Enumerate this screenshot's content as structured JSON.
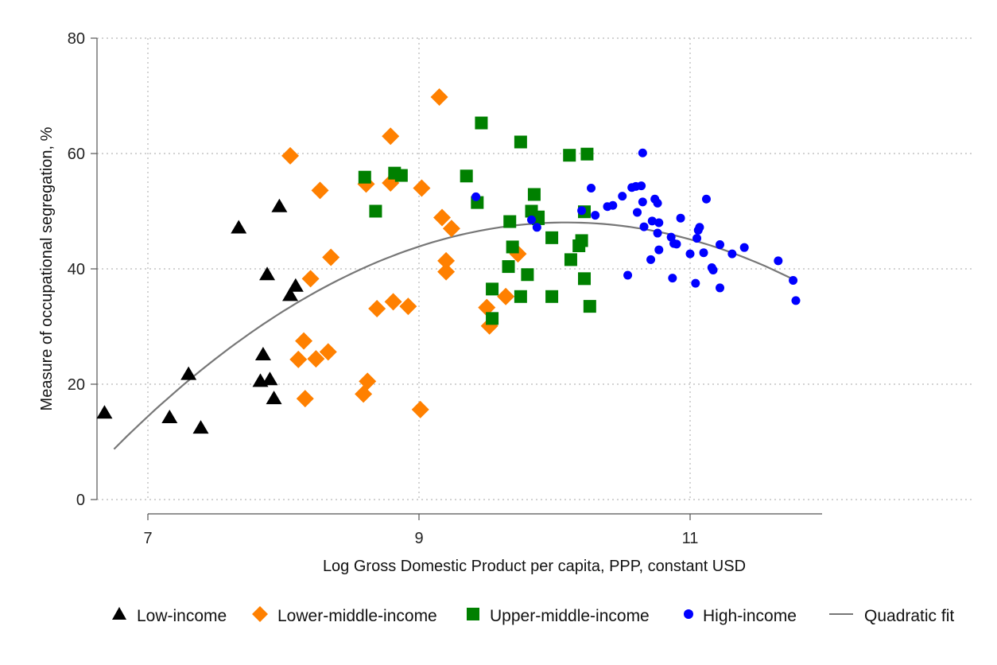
{
  "chart_data": {
    "type": "scatter",
    "title": "",
    "xlabel": "Log Gross Domestic Product per capita, PPP, constant USD",
    "ylabel": "Measure of occupational segregation, %",
    "xlim": [
      6.6,
      12.5
    ],
    "ylim": [
      0,
      80
    ],
    "xticks": [
      7,
      9,
      11
    ],
    "yticks": [
      0,
      20,
      40,
      60,
      80
    ],
    "grid": "horizontal-dotted",
    "legend_position": "bottom",
    "series": [
      {
        "name": "Low-income",
        "marker": "triangle",
        "color": "#000000",
        "points": [
          [
            6.68,
            15.0
          ],
          [
            7.16,
            14.2
          ],
          [
            7.3,
            21.7
          ],
          [
            7.39,
            12.4
          ],
          [
            7.67,
            47.1
          ],
          [
            7.83,
            20.5
          ],
          [
            7.85,
            25.1
          ],
          [
            7.88,
            39.0
          ],
          [
            7.9,
            20.8
          ],
          [
            7.93,
            17.5
          ],
          [
            7.97,
            50.8
          ],
          [
            8.05,
            35.4
          ],
          [
            8.09,
            37.0
          ]
        ]
      },
      {
        "name": "Lower-middle-income",
        "marker": "diamond",
        "color": "#FF8000",
        "points": [
          [
            8.05,
            59.6
          ],
          [
            8.11,
            24.3
          ],
          [
            8.15,
            27.5
          ],
          [
            8.16,
            17.5
          ],
          [
            8.2,
            38.3
          ],
          [
            8.24,
            24.4
          ],
          [
            8.27,
            53.6
          ],
          [
            8.33,
            25.6
          ],
          [
            8.35,
            42.0
          ],
          [
            8.59,
            18.3
          ],
          [
            8.61,
            54.7
          ],
          [
            8.62,
            20.5
          ],
          [
            8.69,
            33.1
          ],
          [
            8.79,
            63.0
          ],
          [
            8.79,
            54.9
          ],
          [
            8.81,
            34.3
          ],
          [
            8.92,
            33.5
          ],
          [
            9.01,
            15.6
          ],
          [
            9.02,
            54.0
          ],
          [
            9.15,
            69.8
          ],
          [
            9.17,
            48.9
          ],
          [
            9.2,
            41.4
          ],
          [
            9.2,
            39.5
          ],
          [
            9.24,
            47.0
          ],
          [
            9.5,
            33.3
          ],
          [
            9.52,
            30.1
          ],
          [
            9.64,
            35.2
          ],
          [
            9.73,
            42.6
          ]
        ]
      },
      {
        "name": "Upper-middle-income",
        "marker": "square",
        "color": "#008000",
        "points": [
          [
            8.6,
            55.9
          ],
          [
            8.68,
            50.0
          ],
          [
            8.82,
            56.6
          ],
          [
            8.87,
            56.2
          ],
          [
            9.35,
            56.1
          ],
          [
            9.43,
            51.5
          ],
          [
            9.46,
            65.3
          ],
          [
            9.54,
            31.4
          ],
          [
            9.54,
            36.5
          ],
          [
            9.66,
            40.4
          ],
          [
            9.67,
            48.2
          ],
          [
            9.69,
            43.8
          ],
          [
            9.75,
            35.2
          ],
          [
            9.75,
            62.0
          ],
          [
            9.8,
            39.0
          ],
          [
            9.83,
            50.0
          ],
          [
            9.85,
            52.9
          ],
          [
            9.88,
            48.7
          ],
          [
            9.88,
            49.0
          ],
          [
            9.98,
            45.4
          ],
          [
            9.98,
            35.2
          ],
          [
            10.11,
            59.7
          ],
          [
            10.12,
            41.6
          ],
          [
            10.18,
            44.0
          ],
          [
            10.2,
            44.9
          ],
          [
            10.22,
            38.3
          ],
          [
            10.22,
            49.9
          ],
          [
            10.24,
            59.9
          ],
          [
            10.26,
            33.5
          ]
        ]
      },
      {
        "name": "High-income",
        "marker": "circle",
        "color": "#0000FF",
        "points": [
          [
            9.42,
            52.5
          ],
          [
            9.83,
            48.5
          ],
          [
            9.87,
            47.2
          ],
          [
            10.2,
            50.1
          ],
          [
            10.27,
            54.0
          ],
          [
            10.3,
            49.3
          ],
          [
            10.39,
            50.8
          ],
          [
            10.43,
            51.0
          ],
          [
            10.5,
            52.6
          ],
          [
            10.54,
            38.9
          ],
          [
            10.57,
            54.1
          ],
          [
            10.6,
            54.3
          ],
          [
            10.61,
            49.8
          ],
          [
            10.64,
            54.4
          ],
          [
            10.65,
            60.1
          ],
          [
            10.65,
            51.6
          ],
          [
            10.66,
            47.3
          ],
          [
            10.71,
            41.6
          ],
          [
            10.72,
            48.3
          ],
          [
            10.74,
            52.1
          ],
          [
            10.76,
            46.2
          ],
          [
            10.76,
            51.4
          ],
          [
            10.77,
            43.3
          ],
          [
            10.77,
            48.0
          ],
          [
            10.86,
            45.5
          ],
          [
            10.87,
            38.4
          ],
          [
            10.88,
            44.4
          ],
          [
            10.9,
            44.3
          ],
          [
            10.93,
            48.8
          ],
          [
            11.0,
            42.6
          ],
          [
            11.04,
            37.5
          ],
          [
            11.05,
            45.3
          ],
          [
            11.06,
            46.7
          ],
          [
            11.07,
            47.2
          ],
          [
            11.1,
            42.8
          ],
          [
            11.12,
            52.1
          ],
          [
            11.16,
            40.2
          ],
          [
            11.17,
            39.8
          ],
          [
            11.22,
            36.7
          ],
          [
            11.22,
            44.2
          ],
          [
            11.31,
            42.6
          ],
          [
            11.4,
            43.7
          ],
          [
            11.65,
            41.4
          ],
          [
            11.76,
            38.0
          ],
          [
            11.78,
            34.5
          ]
        ]
      },
      {
        "name": "Quadratic fit",
        "marker": "line",
        "color": "#777777",
        "fit": {
          "a": -310.88,
          "b": 71.16,
          "c": -3.527
        },
        "x_range": [
          6.75,
          11.75
        ]
      }
    ]
  }
}
